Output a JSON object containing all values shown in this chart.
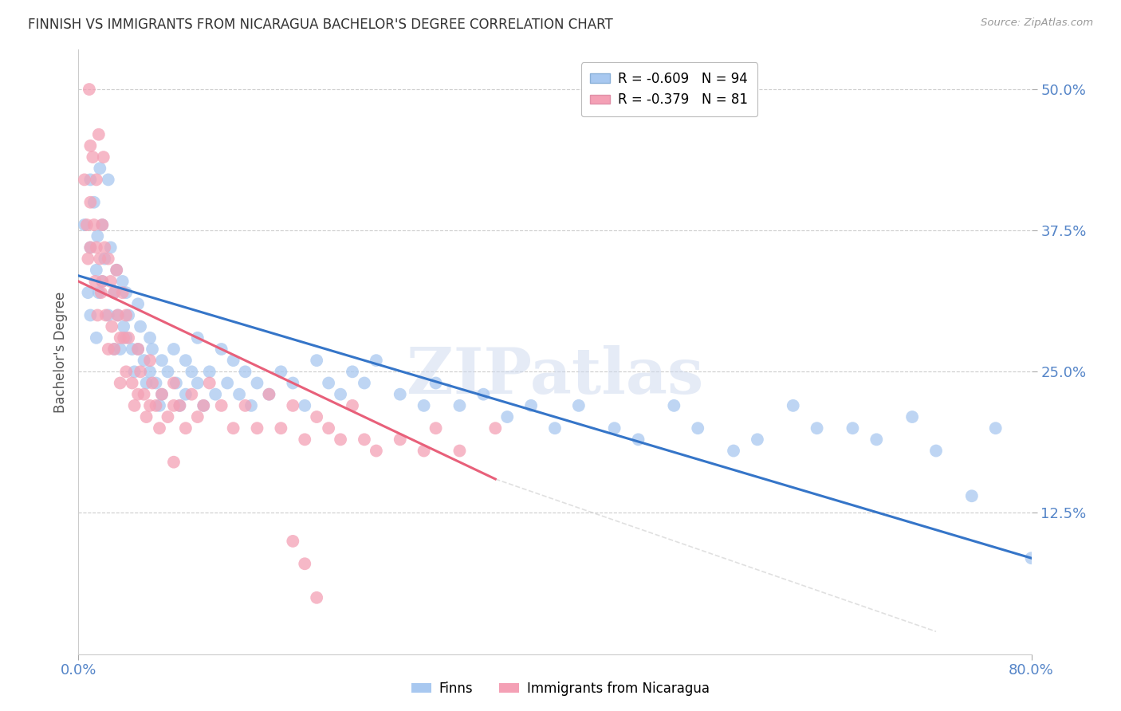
{
  "title": "FINNISH VS IMMIGRANTS FROM NICARAGUA BACHELOR'S DEGREE CORRELATION CHART",
  "source": "Source: ZipAtlas.com",
  "ylabel": "Bachelor's Degree",
  "ytick_values": [
    0.125,
    0.25,
    0.375,
    0.5
  ],
  "xlim": [
    0.0,
    0.8
  ],
  "ylim": [
    0.0,
    0.535
  ],
  "legend_entries": [
    {
      "label": "R = -0.609   N = 94",
      "color": "#a8c8f0"
    },
    {
      "label": "R = -0.379   N = 81",
      "color": "#f4a0b5"
    }
  ],
  "legend_label_finns": "Finns",
  "legend_label_nicaragua": "Immigrants from Nicaragua",
  "watermark_text": "ZIPatlas",
  "finn_color": "#a8c8f0",
  "nicaragua_color": "#f4a0b5",
  "finn_line_color": "#3575c8",
  "nicaragua_line_color": "#e8607a",
  "grid_color": "#cccccc",
  "title_color": "#333333",
  "axis_label_color": "#5585c8",
  "finn_line_start_y": 0.335,
  "finn_line_end_y": 0.085,
  "finn_line_x_end": 0.8,
  "nicaragua_line_start_y": 0.33,
  "nicaragua_line_end_y": 0.155,
  "nicaragua_line_x_end": 0.35,
  "finn_scatter_x": [
    0.005,
    0.008,
    0.01,
    0.01,
    0.01,
    0.013,
    0.015,
    0.015,
    0.016,
    0.017,
    0.018,
    0.02,
    0.02,
    0.022,
    0.025,
    0.025,
    0.027,
    0.03,
    0.03,
    0.032,
    0.033,
    0.035,
    0.037,
    0.038,
    0.04,
    0.04,
    0.042,
    0.045,
    0.047,
    0.05,
    0.05,
    0.052,
    0.055,
    0.057,
    0.06,
    0.06,
    0.062,
    0.065,
    0.068,
    0.07,
    0.07,
    0.075,
    0.08,
    0.082,
    0.085,
    0.09,
    0.09,
    0.095,
    0.1,
    0.1,
    0.105,
    0.11,
    0.115,
    0.12,
    0.125,
    0.13,
    0.135,
    0.14,
    0.145,
    0.15,
    0.16,
    0.17,
    0.18,
    0.19,
    0.2,
    0.21,
    0.22,
    0.23,
    0.24,
    0.25,
    0.27,
    0.29,
    0.3,
    0.32,
    0.34,
    0.36,
    0.38,
    0.4,
    0.42,
    0.45,
    0.47,
    0.5,
    0.52,
    0.55,
    0.57,
    0.6,
    0.62,
    0.65,
    0.67,
    0.7,
    0.72,
    0.75,
    0.77,
    0.8
  ],
  "finn_scatter_y": [
    0.38,
    0.32,
    0.42,
    0.36,
    0.3,
    0.4,
    0.34,
    0.28,
    0.37,
    0.32,
    0.43,
    0.38,
    0.33,
    0.35,
    0.3,
    0.42,
    0.36,
    0.32,
    0.27,
    0.34,
    0.3,
    0.27,
    0.33,
    0.29,
    0.32,
    0.28,
    0.3,
    0.27,
    0.25,
    0.31,
    0.27,
    0.29,
    0.26,
    0.24,
    0.28,
    0.25,
    0.27,
    0.24,
    0.22,
    0.26,
    0.23,
    0.25,
    0.27,
    0.24,
    0.22,
    0.26,
    0.23,
    0.25,
    0.28,
    0.24,
    0.22,
    0.25,
    0.23,
    0.27,
    0.24,
    0.26,
    0.23,
    0.25,
    0.22,
    0.24,
    0.23,
    0.25,
    0.24,
    0.22,
    0.26,
    0.24,
    0.23,
    0.25,
    0.24,
    0.26,
    0.23,
    0.22,
    0.24,
    0.22,
    0.23,
    0.21,
    0.22,
    0.2,
    0.22,
    0.2,
    0.19,
    0.22,
    0.2,
    0.18,
    0.19,
    0.22,
    0.2,
    0.2,
    0.19,
    0.21,
    0.18,
    0.14,
    0.2,
    0.085
  ],
  "nicaragua_scatter_x": [
    0.005,
    0.007,
    0.008,
    0.009,
    0.01,
    0.01,
    0.01,
    0.012,
    0.013,
    0.014,
    0.015,
    0.015,
    0.016,
    0.017,
    0.018,
    0.019,
    0.02,
    0.02,
    0.021,
    0.022,
    0.023,
    0.025,
    0.025,
    0.027,
    0.028,
    0.03,
    0.03,
    0.032,
    0.033,
    0.035,
    0.035,
    0.037,
    0.038,
    0.04,
    0.04,
    0.042,
    0.045,
    0.047,
    0.05,
    0.05,
    0.052,
    0.055,
    0.057,
    0.06,
    0.06,
    0.062,
    0.065,
    0.068,
    0.07,
    0.075,
    0.08,
    0.085,
    0.09,
    0.095,
    0.1,
    0.105,
    0.11,
    0.12,
    0.13,
    0.14,
    0.15,
    0.16,
    0.17,
    0.18,
    0.19,
    0.2,
    0.21,
    0.22,
    0.23,
    0.24,
    0.25,
    0.27,
    0.29,
    0.3,
    0.32,
    0.35,
    0.18,
    0.19,
    0.2,
    0.08,
    0.08
  ],
  "nicaragua_scatter_y": [
    0.42,
    0.38,
    0.35,
    0.5,
    0.45,
    0.4,
    0.36,
    0.44,
    0.38,
    0.33,
    0.42,
    0.36,
    0.3,
    0.46,
    0.35,
    0.32,
    0.38,
    0.33,
    0.44,
    0.36,
    0.3,
    0.35,
    0.27,
    0.33,
    0.29,
    0.32,
    0.27,
    0.34,
    0.3,
    0.28,
    0.24,
    0.32,
    0.28,
    0.3,
    0.25,
    0.28,
    0.24,
    0.22,
    0.27,
    0.23,
    0.25,
    0.23,
    0.21,
    0.26,
    0.22,
    0.24,
    0.22,
    0.2,
    0.23,
    0.21,
    0.24,
    0.22,
    0.2,
    0.23,
    0.21,
    0.22,
    0.24,
    0.22,
    0.2,
    0.22,
    0.2,
    0.23,
    0.2,
    0.22,
    0.19,
    0.21,
    0.2,
    0.19,
    0.22,
    0.19,
    0.18,
    0.19,
    0.18,
    0.2,
    0.18,
    0.2,
    0.1,
    0.08,
    0.05,
    0.17,
    0.22
  ]
}
